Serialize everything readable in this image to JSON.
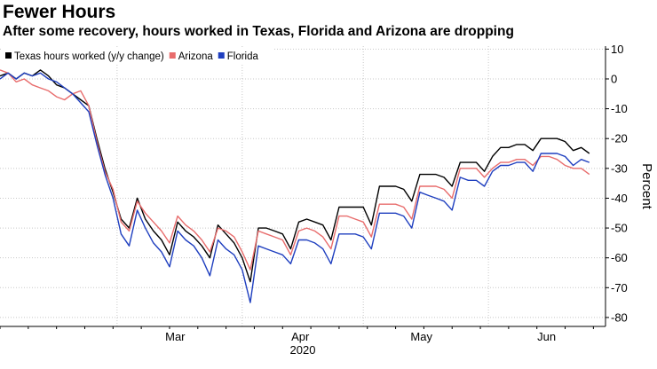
{
  "title": "Fewer Hours",
  "subtitle": "After some recovery, hours worked in Texas, Florida and Arizona are dropping",
  "chart_data": {
    "type": "line",
    "title": "Fewer Hours",
    "subtitle": "After some recovery, hours worked in Texas, Florida and Arizona are dropping",
    "ylabel": "Percent",
    "ylim": [
      -83,
      11
    ],
    "yticks": [
      10,
      0,
      -10,
      -20,
      -30,
      -40,
      -50,
      -60,
      -70,
      -80
    ],
    "ytick_labels": [
      "10",
      "0",
      "-10",
      "-20",
      "-30",
      "-40",
      "-50",
      "-60",
      "-70",
      "-80"
    ],
    "xlim": [
      "2020-02-01",
      "2020-06-30"
    ],
    "xticks": [
      {
        "label": "Mar",
        "date": "2020-03-01"
      },
      {
        "label": "Apr",
        "date": "2020-04-01"
      },
      {
        "label": "May",
        "date": "2020-05-01"
      },
      {
        "label": "Jun",
        "date": "2020-06-01"
      }
    ],
    "xaxis_year_label": "2020",
    "grid": "dotted",
    "legend_position": "top-left",
    "series": [
      {
        "name": "Texas hours worked (y/y change)",
        "color": "#000000",
        "points": [
          [
            "2020-02-01",
            1
          ],
          [
            "2020-02-03",
            2
          ],
          [
            "2020-02-05",
            0
          ],
          [
            "2020-02-07",
            2
          ],
          [
            "2020-02-09",
            1
          ],
          [
            "2020-02-11",
            3
          ],
          [
            "2020-02-13",
            1
          ],
          [
            "2020-02-15",
            -2
          ],
          [
            "2020-02-17",
            -3
          ],
          [
            "2020-02-19",
            -5
          ],
          [
            "2020-02-21",
            -7
          ],
          [
            "2020-02-23",
            -9
          ],
          [
            "2020-02-25",
            -20
          ],
          [
            "2020-02-27",
            -30
          ],
          [
            "2020-02-29",
            -38
          ],
          [
            "2020-03-02",
            -47
          ],
          [
            "2020-03-04",
            -50
          ],
          [
            "2020-03-06",
            -40
          ],
          [
            "2020-03-08",
            -47
          ],
          [
            "2020-03-10",
            -51
          ],
          [
            "2020-03-12",
            -54
          ],
          [
            "2020-03-14",
            -59
          ],
          [
            "2020-03-16",
            -48
          ],
          [
            "2020-03-18",
            -51
          ],
          [
            "2020-03-20",
            -53
          ],
          [
            "2020-03-22",
            -56
          ],
          [
            "2020-03-24",
            -60
          ],
          [
            "2020-03-26",
            -49
          ],
          [
            "2020-03-28",
            -52
          ],
          [
            "2020-03-30",
            -55
          ],
          [
            "2020-04-01",
            -60
          ],
          [
            "2020-04-03",
            -68
          ],
          [
            "2020-04-05",
            -50
          ],
          [
            "2020-04-07",
            -50
          ],
          [
            "2020-04-09",
            -51
          ],
          [
            "2020-04-11",
            -52
          ],
          [
            "2020-04-13",
            -57
          ],
          [
            "2020-04-15",
            -48
          ],
          [
            "2020-04-17",
            -47
          ],
          [
            "2020-04-19",
            -48
          ],
          [
            "2020-04-21",
            -49
          ],
          [
            "2020-04-23",
            -54
          ],
          [
            "2020-04-25",
            -43
          ],
          [
            "2020-04-27",
            -43
          ],
          [
            "2020-04-29",
            -43
          ],
          [
            "2020-05-01",
            -43
          ],
          [
            "2020-05-03",
            -49
          ],
          [
            "2020-05-05",
            -36
          ],
          [
            "2020-05-07",
            -36
          ],
          [
            "2020-05-09",
            -36
          ],
          [
            "2020-05-11",
            -37
          ],
          [
            "2020-05-13",
            -41
          ],
          [
            "2020-05-15",
            -32
          ],
          [
            "2020-05-17",
            -32
          ],
          [
            "2020-05-19",
            -32
          ],
          [
            "2020-05-21",
            -33
          ],
          [
            "2020-05-23",
            -36
          ],
          [
            "2020-05-25",
            -28
          ],
          [
            "2020-05-27",
            -28
          ],
          [
            "2020-05-29",
            -28
          ],
          [
            "2020-05-31",
            -31
          ],
          [
            "2020-06-02",
            -26
          ],
          [
            "2020-06-04",
            -23
          ],
          [
            "2020-06-06",
            -23
          ],
          [
            "2020-06-08",
            -22
          ],
          [
            "2020-06-10",
            -22
          ],
          [
            "2020-06-12",
            -24
          ],
          [
            "2020-06-14",
            -20
          ],
          [
            "2020-06-16",
            -20
          ],
          [
            "2020-06-18",
            -20
          ],
          [
            "2020-06-20",
            -21
          ],
          [
            "2020-06-22",
            -24
          ],
          [
            "2020-06-24",
            -23
          ],
          [
            "2020-06-26",
            -25
          ]
        ]
      },
      {
        "name": "Arizona",
        "color": "#e86c6c",
        "points": [
          [
            "2020-02-01",
            3
          ],
          [
            "2020-02-03",
            2
          ],
          [
            "2020-02-05",
            -1
          ],
          [
            "2020-02-07",
            0
          ],
          [
            "2020-02-09",
            -2
          ],
          [
            "2020-02-11",
            -3
          ],
          [
            "2020-02-13",
            -4
          ],
          [
            "2020-02-15",
            -6
          ],
          [
            "2020-02-17",
            -7
          ],
          [
            "2020-02-19",
            -5
          ],
          [
            "2020-02-21",
            -4
          ],
          [
            "2020-02-23",
            -9
          ],
          [
            "2020-02-25",
            -21
          ],
          [
            "2020-02-27",
            -31
          ],
          [
            "2020-02-29",
            -37
          ],
          [
            "2020-03-02",
            -48
          ],
          [
            "2020-03-04",
            -51
          ],
          [
            "2020-03-06",
            -41
          ],
          [
            "2020-03-08",
            -45
          ],
          [
            "2020-03-10",
            -48
          ],
          [
            "2020-03-12",
            -51
          ],
          [
            "2020-03-14",
            -55
          ],
          [
            "2020-03-16",
            -46
          ],
          [
            "2020-03-18",
            -49
          ],
          [
            "2020-03-20",
            -51
          ],
          [
            "2020-03-22",
            -54
          ],
          [
            "2020-03-24",
            -58
          ],
          [
            "2020-03-26",
            -50
          ],
          [
            "2020-03-28",
            -51
          ],
          [
            "2020-03-30",
            -53
          ],
          [
            "2020-04-01",
            -58
          ],
          [
            "2020-04-03",
            -64
          ],
          [
            "2020-04-05",
            -51
          ],
          [
            "2020-04-07",
            -52
          ],
          [
            "2020-04-09",
            -53
          ],
          [
            "2020-04-11",
            -54
          ],
          [
            "2020-04-13",
            -59
          ],
          [
            "2020-04-15",
            -51
          ],
          [
            "2020-04-17",
            -50
          ],
          [
            "2020-04-19",
            -51
          ],
          [
            "2020-04-21",
            -53
          ],
          [
            "2020-04-23",
            -57
          ],
          [
            "2020-04-25",
            -46
          ],
          [
            "2020-04-27",
            -46
          ],
          [
            "2020-04-29",
            -47
          ],
          [
            "2020-05-01",
            -48
          ],
          [
            "2020-05-03",
            -53
          ],
          [
            "2020-05-05",
            -42
          ],
          [
            "2020-05-07",
            -42
          ],
          [
            "2020-05-09",
            -42
          ],
          [
            "2020-05-11",
            -43
          ],
          [
            "2020-05-13",
            -47
          ],
          [
            "2020-05-15",
            -36
          ],
          [
            "2020-05-17",
            -36
          ],
          [
            "2020-05-19",
            -36
          ],
          [
            "2020-05-21",
            -37
          ],
          [
            "2020-05-23",
            -40
          ],
          [
            "2020-05-25",
            -30
          ],
          [
            "2020-05-27",
            -30
          ],
          [
            "2020-05-29",
            -30
          ],
          [
            "2020-05-31",
            -33
          ],
          [
            "2020-06-02",
            -30
          ],
          [
            "2020-06-04",
            -28
          ],
          [
            "2020-06-06",
            -28
          ],
          [
            "2020-06-08",
            -27
          ],
          [
            "2020-06-10",
            -27
          ],
          [
            "2020-06-12",
            -29
          ],
          [
            "2020-06-14",
            -26
          ],
          [
            "2020-06-16",
            -26
          ],
          [
            "2020-06-18",
            -27
          ],
          [
            "2020-06-20",
            -29
          ],
          [
            "2020-06-22",
            -30
          ],
          [
            "2020-06-24",
            -30
          ],
          [
            "2020-06-26",
            -32
          ]
        ]
      },
      {
        "name": "Florida",
        "color": "#1f3fbf",
        "points": [
          [
            "2020-02-01",
            0
          ],
          [
            "2020-02-03",
            2
          ],
          [
            "2020-02-05",
            0
          ],
          [
            "2020-02-07",
            2
          ],
          [
            "2020-02-09",
            1
          ],
          [
            "2020-02-11",
            2
          ],
          [
            "2020-02-13",
            0
          ],
          [
            "2020-02-15",
            -1
          ],
          [
            "2020-02-17",
            -3
          ],
          [
            "2020-02-19",
            -5
          ],
          [
            "2020-02-21",
            -8
          ],
          [
            "2020-02-23",
            -11
          ],
          [
            "2020-02-25",
            -22
          ],
          [
            "2020-02-27",
            -32
          ],
          [
            "2020-02-29",
            -40
          ],
          [
            "2020-03-02",
            -52
          ],
          [
            "2020-03-04",
            -56
          ],
          [
            "2020-03-06",
            -44
          ],
          [
            "2020-03-08",
            -50
          ],
          [
            "2020-03-10",
            -55
          ],
          [
            "2020-03-12",
            -58
          ],
          [
            "2020-03-14",
            -63
          ],
          [
            "2020-03-16",
            -51
          ],
          [
            "2020-03-18",
            -54
          ],
          [
            "2020-03-20",
            -56
          ],
          [
            "2020-03-22",
            -60
          ],
          [
            "2020-03-24",
            -66
          ],
          [
            "2020-03-26",
            -54
          ],
          [
            "2020-03-28",
            -57
          ],
          [
            "2020-03-30",
            -59
          ],
          [
            "2020-04-01",
            -64
          ],
          [
            "2020-04-03",
            -75
          ],
          [
            "2020-04-05",
            -56
          ],
          [
            "2020-04-07",
            -57
          ],
          [
            "2020-04-09",
            -58
          ],
          [
            "2020-04-11",
            -59
          ],
          [
            "2020-04-13",
            -62
          ],
          [
            "2020-04-15",
            -54
          ],
          [
            "2020-04-17",
            -54
          ],
          [
            "2020-04-19",
            -55
          ],
          [
            "2020-04-21",
            -57
          ],
          [
            "2020-04-23",
            -62
          ],
          [
            "2020-04-25",
            -52
          ],
          [
            "2020-04-27",
            -52
          ],
          [
            "2020-04-29",
            -52
          ],
          [
            "2020-05-01",
            -53
          ],
          [
            "2020-05-03",
            -57
          ],
          [
            "2020-05-05",
            -45
          ],
          [
            "2020-05-07",
            -45
          ],
          [
            "2020-05-09",
            -45
          ],
          [
            "2020-05-11",
            -46
          ],
          [
            "2020-05-13",
            -50
          ],
          [
            "2020-05-15",
            -38
          ],
          [
            "2020-05-17",
            -39
          ],
          [
            "2020-05-19",
            -40
          ],
          [
            "2020-05-21",
            -41
          ],
          [
            "2020-05-23",
            -44
          ],
          [
            "2020-05-25",
            -33
          ],
          [
            "2020-05-27",
            -34
          ],
          [
            "2020-05-29",
            -34
          ],
          [
            "2020-05-31",
            -36
          ],
          [
            "2020-06-02",
            -31
          ],
          [
            "2020-06-04",
            -29
          ],
          [
            "2020-06-06",
            -29
          ],
          [
            "2020-06-08",
            -28
          ],
          [
            "2020-06-10",
            -28
          ],
          [
            "2020-06-12",
            -31
          ],
          [
            "2020-06-14",
            -25
          ],
          [
            "2020-06-16",
            -25
          ],
          [
            "2020-06-18",
            -25
          ],
          [
            "2020-06-20",
            -26
          ],
          [
            "2020-06-22",
            -29
          ],
          [
            "2020-06-24",
            -27
          ],
          [
            "2020-06-26",
            -28
          ]
        ]
      }
    ]
  }
}
